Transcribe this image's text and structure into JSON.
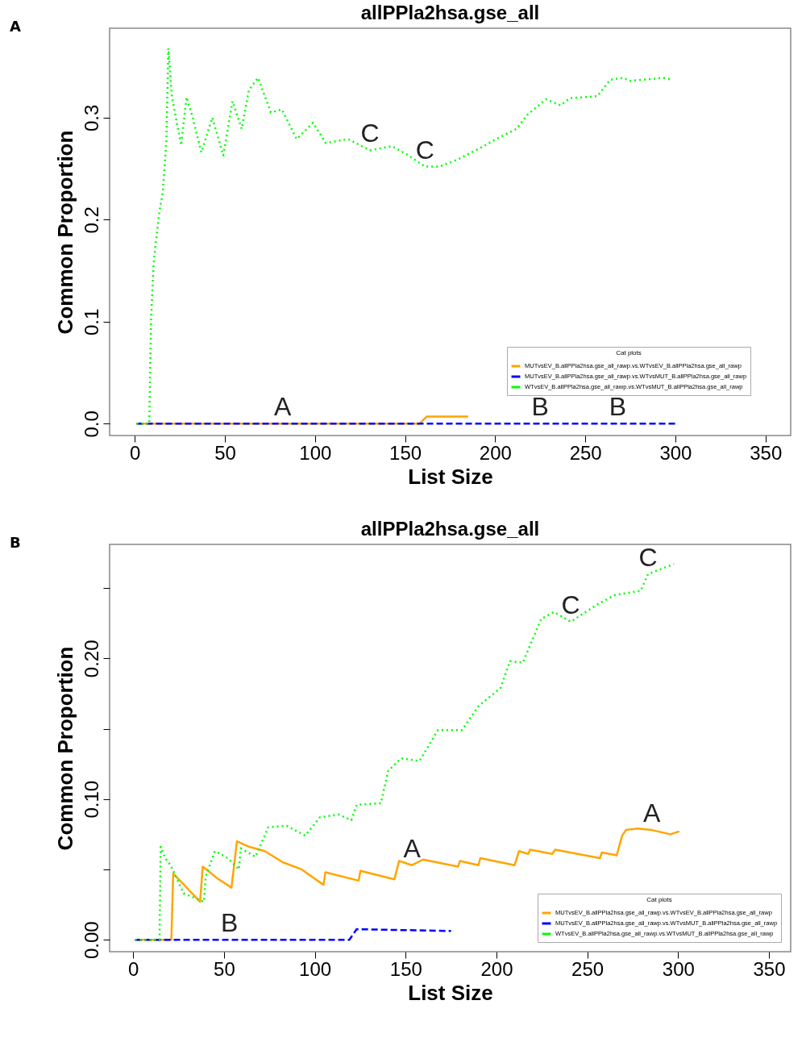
{
  "chart_data": [
    {
      "type": "line",
      "title": "allPPla2hsa.gse_all",
      "xlabel": "List Size",
      "ylabel": "Common Proportion",
      "legend_title": "Cat plots",
      "legend": "bottom right",
      "annotations": [
        "A",
        {
          "text": "A",
          "x": 82,
          "y": 0
        },
        {
          "text": "B",
          "x": 225,
          "y": 0
        },
        {
          "text": "B",
          "x": 268,
          "y": 0
        },
        {
          "text": "C",
          "x": 130.5,
          "y": 0.268
        },
        {
          "text": "C",
          "x": 161,
          "y": 0.252
        }
      ],
      "xlim": [
        -14,
        364
      ],
      "xticks": [
        0,
        50,
        100,
        150,
        200,
        250,
        300,
        350
      ],
      "ylim": [
        -0.0116,
        0.3876
      ],
      "yticks": [
        {
          "value": 0,
          "label": "0.0"
        },
        {
          "value": 0.1,
          "label": "0.1"
        },
        {
          "value": 0.2,
          "label": "0.2"
        },
        {
          "value": 0.3,
          "label": "0.3"
        }
      ],
      "series": [
        {
          "name": "MUTvsEV_B.allPPla2hsa.gse_all_rawp.vs.WTvsEV_B.allPPla2hsa.gse_all_rawp",
          "color": "#ffa500",
          "line_style": "solid",
          "x": [
            1,
            158,
            162,
            185
          ],
          "values": [
            0,
            0,
            0.007,
            0.007
          ]
        },
        {
          "name": "MUTvsEV_B.allPPla2hsa.gse_all_rawp.vs.WTvsMUT_B.allPPla2hsa.gse_all_rawp",
          "color": "#0000ff",
          "line_style": "dashed",
          "x": [
            1,
            300
          ],
          "values": [
            0,
            0
          ]
        },
        {
          "name": "WTvsEV_B.allPPla2hsa.gse_all_rawp.vs.WTvsMUT_B.allPPla2hsa.gse_all_rawp",
          "color": "#00ff00",
          "line_style": "dotted",
          "x": [
            1,
            8,
            9,
            10.4,
            11.4,
            13.5,
            15.5,
            17.5,
            18.6,
            20.6,
            25.7,
            28.7,
            31.8,
            36.9,
            43,
            49.1,
            54.2,
            59.3,
            63.3,
            68.4,
            75.5,
            81.6,
            89.8,
            98.9,
            106,
            118.3,
            130.5,
            142.7,
            150.9,
            161,
            169.2,
            179.3,
            191.5,
            201.7,
            211.9,
            218,
            228.2,
            236.3,
            241.4,
            256.7,
            263.8,
            270.9,
            275,
            287.2,
            293.3,
            298.4
          ],
          "values": [
            0,
            0,
            0.103,
            0.156,
            0.174,
            0.206,
            0.227,
            0.277,
            0.368,
            0.32,
            0.273,
            0.32,
            0.302,
            0.266,
            0.3,
            0.263,
            0.316,
            0.289,
            0.327,
            0.339,
            0.305,
            0.308,
            0.279,
            0.295,
            0.275,
            0.279,
            0.268,
            0.272,
            0.264,
            0.252,
            0.252,
            0.259,
            0.27,
            0.28,
            0.289,
            0.303,
            0.318,
            0.312,
            0.319,
            0.321,
            0.337,
            0.339,
            0.336,
            0.338,
            0.339,
            0.337
          ]
        }
      ]
    },
    {
      "type": "line",
      "title": "allPPla2hsa.gse_all",
      "xlabel": "List Size",
      "ylabel": "Common Proportion",
      "legend_title": "Cat plots",
      "legend": "bottom right",
      "annotations": [
        "B",
        {
          "text": "A",
          "x": 153.5,
          "y": 0.053
        },
        {
          "text": "A",
          "x": 285.5,
          "y": 0.078
        },
        {
          "text": "B",
          "x": 53,
          "y": 0
        },
        {
          "text": "C",
          "x": 240.9,
          "y": 0.226
        },
        {
          "text": "C",
          "x": 283.5,
          "y": 0.26
        }
      ],
      "xlim": [
        -13,
        362
      ],
      "xticks": [
        0,
        50,
        100,
        150,
        200,
        250,
        300,
        350
      ],
      "ylim": [
        -0.0085,
        0.281
      ],
      "yticks": [
        {
          "value": 0,
          "label": "0.00"
        },
        {
          "value": 0.05,
          "label": null
        },
        {
          "value": 0.1,
          "label": "0.10"
        },
        {
          "value": 0.15,
          "label": null
        },
        {
          "value": 0.2,
          "label": "0.20"
        },
        {
          "value": 0.25,
          "label": null
        }
      ],
      "series": [
        {
          "name": "MUTvsEV_B.allPPla2hsa.gse_all_rawp.vs.WTvsEV_B.allPPla2hsa.gse_all_rawp",
          "color": "#ffa500",
          "line_style": "solid",
          "x": [
            1,
            21,
            22,
            28,
            36.8,
            38.3,
            46,
            54.1,
            57.1,
            64,
            72.4,
            82.5,
            92.7,
            104.8,
            105.8,
            124.1,
            125.1,
            143.8,
            146.4,
            153.5,
            159.6,
            178.9,
            179.9,
            190.1,
            191.1,
            210,
            212.4,
            217.5,
            218.5,
            230.7,
            232.3,
            257,
            258,
            266.2,
            269.2,
            271.3,
            277.4,
            285.5,
            295.7,
            300.7
          ],
          "values": [
            0,
            0,
            0.047,
            0.039,
            0.027,
            0.052,
            0.044,
            0.037,
            0.07,
            0.066,
            0.063,
            0.055,
            0.05,
            0.039,
            0.048,
            0.042,
            0.049,
            0.043,
            0.056,
            0.053,
            0.057,
            0.052,
            0.056,
            0.053,
            0.058,
            0.053,
            0.063,
            0.061,
            0.064,
            0.061,
            0.064,
            0.058,
            0.062,
            0.06,
            0.074,
            0.078,
            0.079,
            0.078,
            0.075,
            0.077
          ]
        },
        {
          "name": "MUTvsEV_B.allPPla2hsa.gse_all_rawp.vs.WTvsMUT_B.allPPla2hsa.gse_all_rawp",
          "color": "#0000ff",
          "line_style": "dashed",
          "x": [
            1,
            119,
            123,
            175
          ],
          "values": [
            0,
            0,
            0.0075,
            0.0062
          ]
        },
        {
          "name": "WTvsEV_B.allPPla2hsa.gse_all_rawp.vs.WTvsMUT_B.allPPla2hsa.gse_all_rawp",
          "color": "#00ff00",
          "line_style": "dotted",
          "x": [
            1,
            14.5,
            15.1,
            17.6,
            20.6,
            27.7,
            38.9,
            39.9,
            45,
            52.1,
            58.2,
            59.2,
            67.3,
            74.4,
            84.5,
            94.7,
            102.8,
            113,
            120.1,
            123.1,
            136.3,
            140.4,
            147.5,
            157.6,
            167.8,
            181,
            190.1,
            202.3,
            207.4,
            214.5,
            224.6,
            231.7,
            240.9,
            255.1,
            265.2,
            279.4,
            283.5,
            297.7
          ],
          "values": [
            0,
            0,
            0.066,
            0.058,
            0.053,
            0.033,
            0.027,
            0.045,
            0.063,
            0.058,
            0.05,
            0.065,
            0.059,
            0.08,
            0.081,
            0.074,
            0.087,
            0.089,
            0.085,
            0.096,
            0.097,
            0.12,
            0.129,
            0.127,
            0.149,
            0.149,
            0.166,
            0.179,
            0.198,
            0.197,
            0.228,
            0.233,
            0.226,
            0.238,
            0.245,
            0.248,
            0.26,
            0.267
          ]
        }
      ]
    }
  ]
}
